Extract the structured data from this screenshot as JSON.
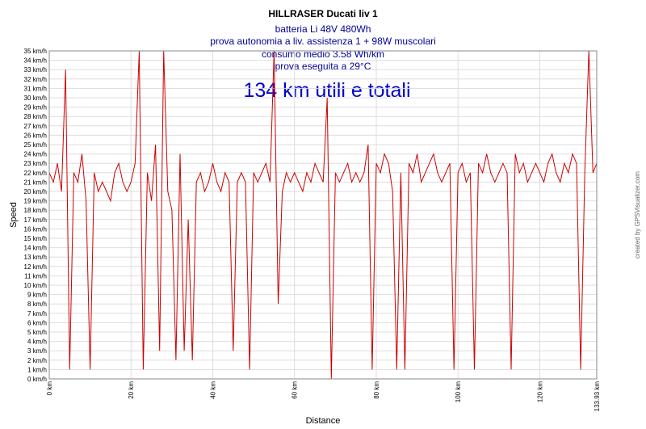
{
  "chart_data": {
    "type": "line",
    "title": "HILLRASER Ducati   liv 1",
    "annotations": [
      "batteria Li     48V 480Wh",
      "prova autonomia a liv. assistenza 1 + 98W muscolari",
      "consumo medio 3.58 Wh/km",
      "prova eseguita a 29°C"
    ],
    "headline": "134 km utili e totali",
    "xlabel": "Distance",
    "ylabel": "Speed",
    "credit": "created by GPSVisualizer.com",
    "xlim": [
      0,
      133.93
    ],
    "ylim": [
      0,
      35
    ],
    "x_ticks": [
      "0 km",
      "20 km",
      "40 km",
      "60 km",
      "80 km",
      "100 km",
      "120 km",
      "133.93 km"
    ],
    "y_tick_unit": "km/h",
    "grid": true,
    "line_color": "#cc0000",
    "title_color": "#000000",
    "annotation_color": "#000099",
    "headline_color": "#0000cc",
    "series": [
      {
        "x": [
          0,
          1,
          2,
          3,
          4,
          5,
          6,
          7,
          8,
          9,
          10,
          11,
          12,
          13,
          14,
          15,
          16,
          17,
          18,
          19,
          20,
          21,
          22,
          23,
          24,
          25,
          26,
          27,
          28,
          29,
          30,
          31,
          32,
          33,
          34,
          35,
          36,
          37,
          38,
          39,
          40,
          41,
          42,
          43,
          44,
          45,
          46,
          47,
          48,
          49,
          50,
          51,
          52,
          53,
          54,
          55,
          56,
          57,
          58,
          59,
          60,
          61,
          62,
          63,
          64,
          65,
          66,
          67,
          68,
          69,
          70,
          71,
          72,
          73,
          74,
          75,
          76,
          77,
          78,
          79,
          80,
          81,
          82,
          83,
          84,
          85,
          86,
          87,
          88,
          89,
          90,
          91,
          92,
          93,
          94,
          95,
          96,
          97,
          98,
          99,
          100,
          101,
          102,
          103,
          104,
          105,
          106,
          107,
          108,
          109,
          110,
          111,
          112,
          113,
          114,
          115,
          116,
          117,
          118,
          119,
          120,
          121,
          122,
          123,
          124,
          125,
          126,
          127,
          128,
          129,
          130,
          131,
          132,
          133,
          133.93
        ],
        "y": [
          22,
          21,
          23,
          20,
          33,
          1,
          22,
          21,
          24,
          19,
          1,
          22,
          20,
          21,
          20,
          19,
          22,
          23,
          21,
          20,
          21,
          23,
          35,
          1,
          22,
          19,
          25,
          3,
          35,
          20,
          18,
          2,
          24,
          3,
          17,
          2,
          21,
          22,
          20,
          21,
          23,
          21,
          20,
          22,
          21,
          3,
          21,
          22,
          21,
          1,
          22,
          21,
          22,
          23,
          21,
          35,
          8,
          20,
          22,
          21,
          22,
          21,
          20,
          22,
          21,
          23,
          22,
          21,
          30,
          0,
          22,
          21,
          22,
          23,
          21,
          22,
          21,
          22,
          25,
          1,
          23,
          22,
          24,
          23,
          20,
          1,
          22,
          1,
          23,
          22,
          24,
          21,
          22,
          23,
          24,
          22,
          21,
          22,
          23,
          1,
          22,
          23,
          21,
          22,
          1,
          23,
          22,
          24,
          22,
          21,
          22,
          23,
          22,
          1,
          24,
          22,
          23,
          21,
          22,
          23,
          22,
          21,
          23,
          24,
          22,
          21,
          23,
          22,
          24,
          23,
          1,
          22,
          35,
          22,
          23
        ]
      }
    ]
  }
}
